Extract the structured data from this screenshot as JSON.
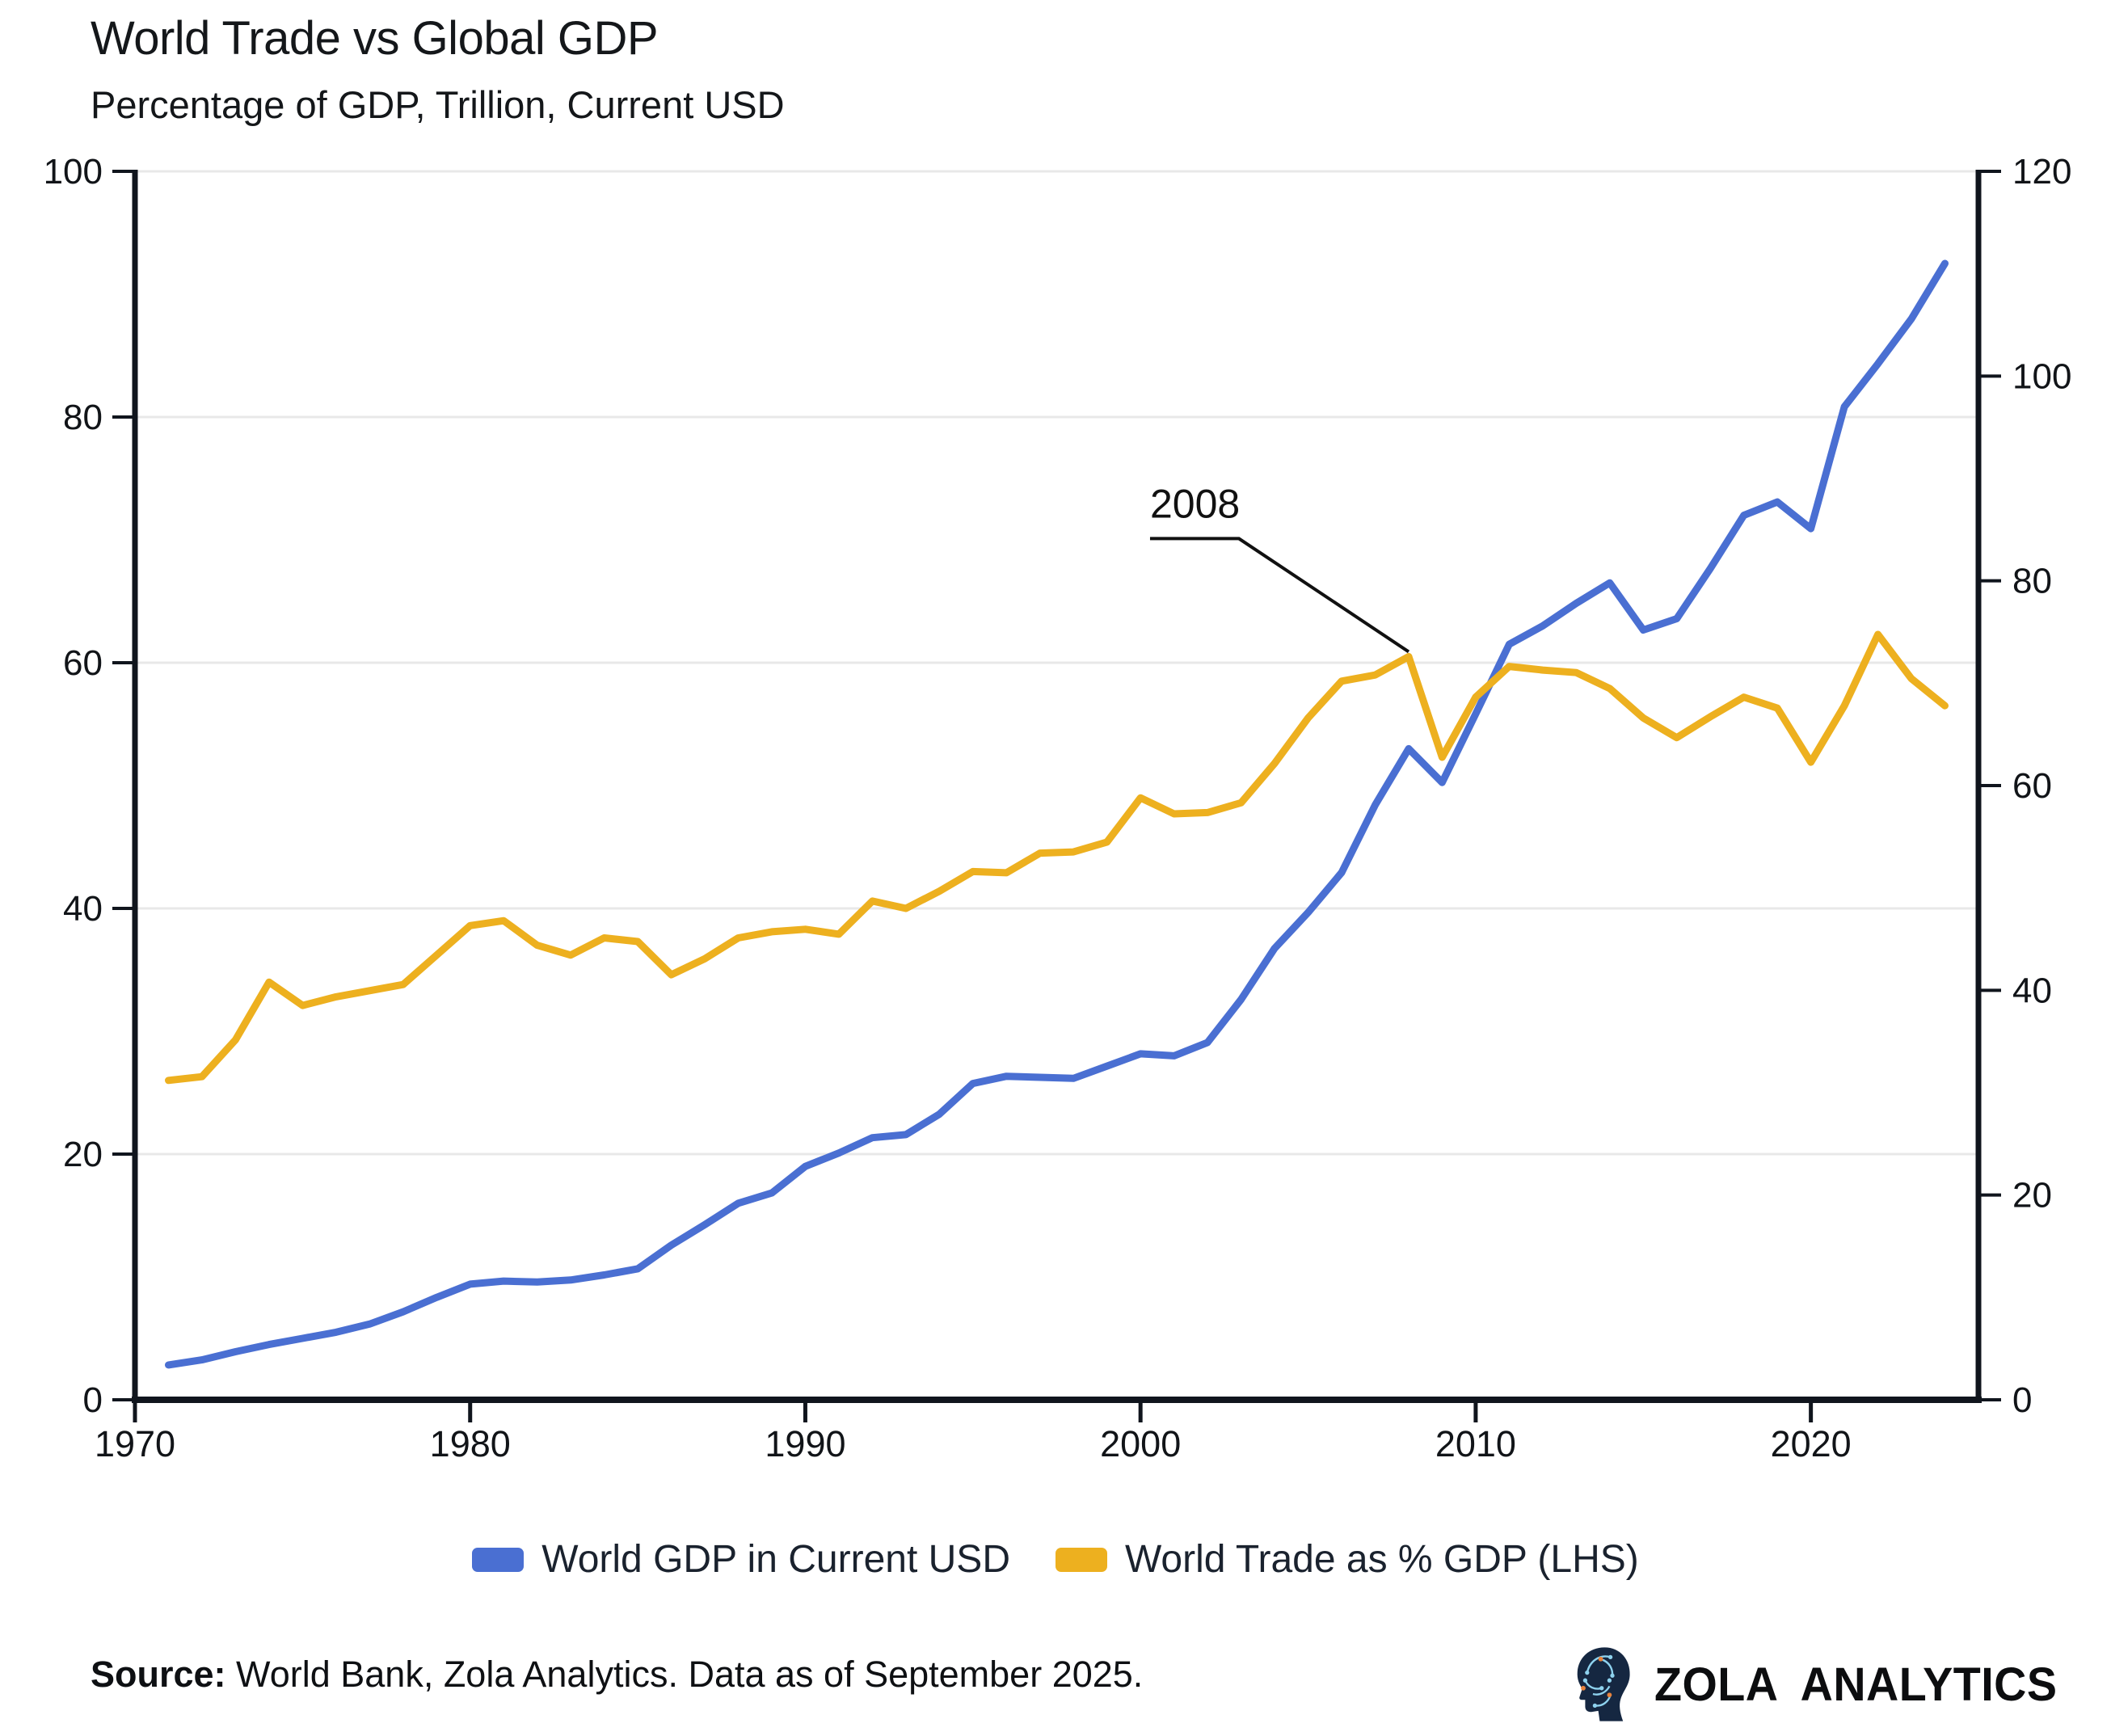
{
  "chart_data": {
    "type": "line",
    "title": "World Trade vs Global GDP",
    "subtitle": "Percentage of GDP, Trillion, Current USD",
    "grid": true,
    "grid_color": "#e8e8e8",
    "axis_color": "#10151d",
    "legend_position": "bottom",
    "x_axis": {
      "range": [
        1970,
        2025
      ],
      "ticks": [
        1970,
        1980,
        1990,
        2000,
        2010,
        2020
      ]
    },
    "left_axis": {
      "range": [
        0,
        100
      ],
      "ticks": [
        0,
        20,
        40,
        60,
        80,
        100
      ]
    },
    "right_axis": {
      "range": [
        0,
        120
      ],
      "ticks": [
        0,
        20,
        40,
        60,
        80,
        100,
        120
      ]
    },
    "x": [
      1971,
      1972,
      1973,
      1974,
      1975,
      1976,
      1977,
      1978,
      1979,
      1980,
      1981,
      1982,
      1983,
      1984,
      1985,
      1986,
      1987,
      1988,
      1989,
      1990,
      1991,
      1992,
      1993,
      1994,
      1995,
      1996,
      1997,
      1998,
      1999,
      2000,
      2001,
      2002,
      2003,
      2004,
      2005,
      2006,
      2007,
      2008,
      2009,
      2010,
      2011,
      2012,
      2013,
      2014,
      2015,
      2016,
      2017,
      2018,
      2019,
      2020,
      2021,
      2022,
      2023,
      2024
    ],
    "series": [
      {
        "name": "World GDP in Current USD",
        "axis": "right",
        "color": "#4a6fd2",
        "values": [
          3.4,
          3.9,
          4.7,
          5.4,
          6.0,
          6.6,
          7.4,
          8.6,
          10.0,
          11.3,
          11.6,
          11.5,
          11.7,
          12.2,
          12.8,
          15.1,
          17.1,
          19.2,
          20.2,
          22.8,
          24.1,
          25.6,
          25.9,
          27.9,
          30.9,
          31.6,
          31.5,
          31.4,
          32.6,
          33.8,
          33.6,
          34.9,
          39.1,
          44.1,
          47.6,
          51.5,
          58.1,
          63.6,
          60.3,
          67.0,
          73.8,
          75.6,
          77.8,
          79.8,
          75.2,
          76.3,
          81.2,
          86.4,
          87.7,
          85.1,
          97.0,
          101.2,
          105.6,
          111.0
        ]
      },
      {
        "name": "World Trade as % GDP (LHS)",
        "axis": "left",
        "color": "#edb01f",
        "values": [
          26.0,
          26.3,
          29.3,
          34.0,
          32.1,
          32.8,
          33.3,
          33.8,
          36.2,
          38.6,
          39.0,
          37.0,
          36.2,
          37.6,
          37.3,
          34.6,
          35.9,
          37.6,
          38.1,
          38.3,
          37.9,
          40.6,
          40.0,
          41.4,
          43.0,
          42.9,
          44.5,
          44.6,
          45.4,
          49.0,
          47.7,
          47.8,
          48.6,
          51.8,
          55.5,
          58.5,
          59.0,
          60.5,
          52.3,
          57.2,
          59.7,
          59.4,
          59.2,
          57.9,
          55.5,
          53.9,
          55.6,
          57.2,
          56.3,
          51.9,
          56.5,
          62.3,
          58.7,
          56.5
        ]
      }
    ],
    "annotation": {
      "text": "2008",
      "year": 2008,
      "value": 60.5,
      "axis": "left"
    }
  },
  "legend": {
    "items": [
      {
        "label": "World GDP in Current USD",
        "color": "#4a6fd2"
      },
      {
        "label": "World Trade as % GDP (LHS)",
        "color": "#edb01f"
      }
    ]
  },
  "footer": {
    "source_label": "Source:",
    "source_text": " World Bank, Zola Analytics. Data as of September 2025.",
    "logo_text": "ZOLA ANALYTICS"
  }
}
